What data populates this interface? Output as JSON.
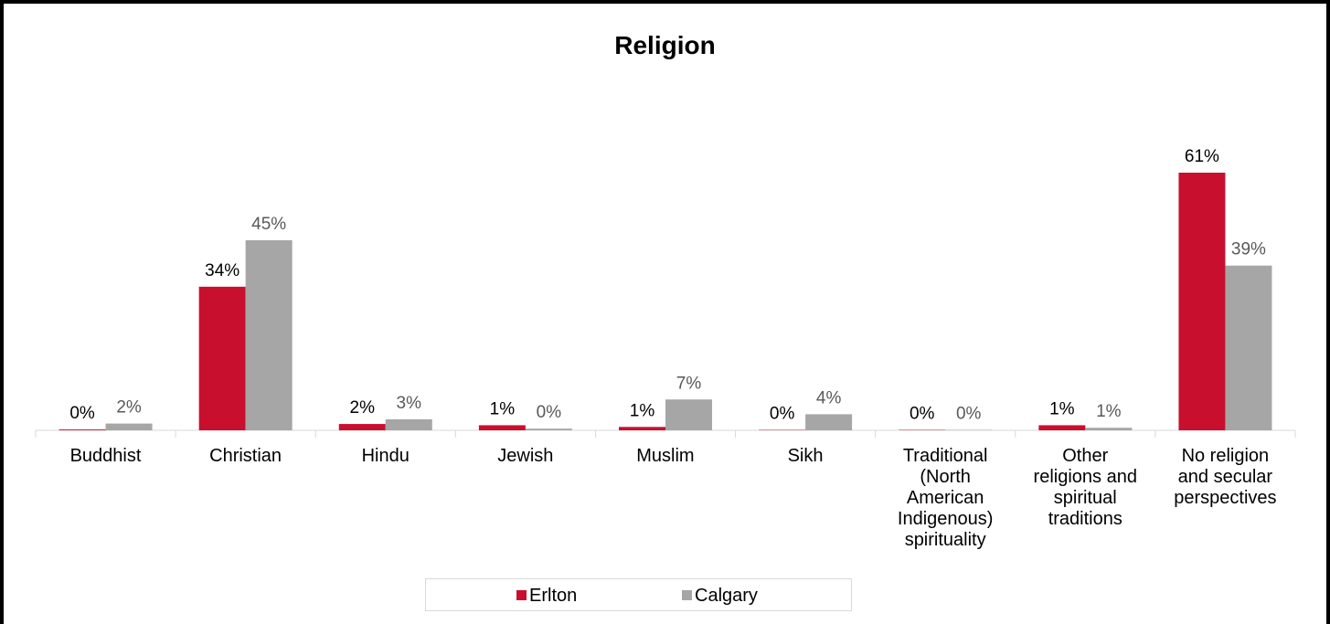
{
  "chart_data": {
    "type": "bar",
    "title": "Religion",
    "categories": [
      "Buddhist",
      "Christian",
      "Hindu",
      "Jewish",
      "Muslim",
      "Sikh",
      "Traditional\n(North\nAmerican\nIndigenous)\nspirituality",
      "Other\nreligions and\nspiritual\ntraditions",
      "No religion\nand secular\nperspectives"
    ],
    "series": [
      {
        "name": "Erlton",
        "color": "#c8102e",
        "values": [
          0.2,
          34,
          1.5,
          1.2,
          0.8,
          0.1,
          0.1,
          1.2,
          61
        ],
        "labels": [
          "0%",
          "34%",
          "2%",
          "1%",
          "1%",
          "0%",
          "0%",
          "1%",
          "61%"
        ]
      },
      {
        "name": "Calgary",
        "color": "#a6a6a6",
        "values": [
          1.6,
          45,
          2.6,
          0.4,
          7.3,
          3.8,
          0.1,
          0.6,
          39
        ],
        "labels": [
          "2%",
          "45%",
          "3%",
          "0%",
          "7%",
          "4%",
          "0%",
          "1%",
          "39%"
        ]
      }
    ],
    "ylim": [
      0,
      65
    ],
    "legend_position": "bottom",
    "grid": false
  }
}
